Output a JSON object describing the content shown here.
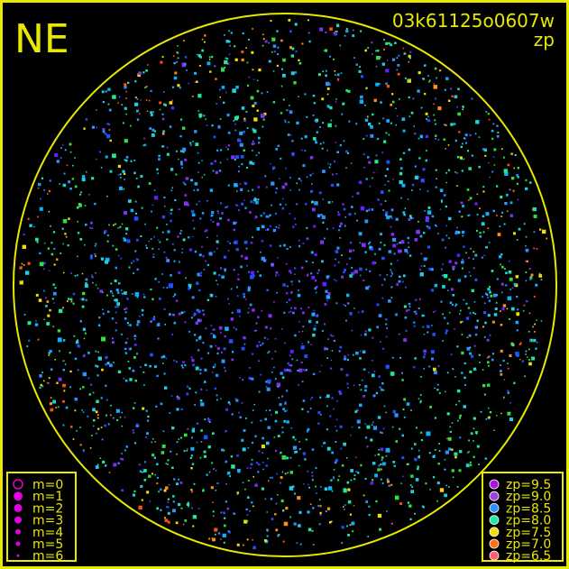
{
  "title": "NE",
  "frame_id": "03k61125o0607w",
  "quantity": "zp",
  "colors": {
    "frame": "#e8e800",
    "background": "#000000"
  },
  "chart_data": {
    "type": "scatter",
    "projection": "all-sky circle",
    "grid": false,
    "size_legend": {
      "placement": "bottom-left",
      "entries": [
        "m=0",
        "m=1",
        "m=2",
        "m=3",
        "m=4",
        "m=5",
        "m=6"
      ]
    },
    "color_legend": {
      "placement": "bottom-right",
      "entries": [
        {
          "label": "zp=9.5",
          "color": "#b010e8"
        },
        {
          "label": "zp=9.0",
          "color": "#a040e0"
        },
        {
          "label": "zp=8.5",
          "color": "#3090ff"
        },
        {
          "label": "zp=8.0",
          "color": "#20e8a0"
        },
        {
          "label": "zp=7.5",
          "color": "#f0e000"
        },
        {
          "label": "zp=7.0",
          "color": "#ff7010"
        },
        {
          "label": "zp=6.5",
          "color": "#ff6070"
        }
      ]
    }
  }
}
